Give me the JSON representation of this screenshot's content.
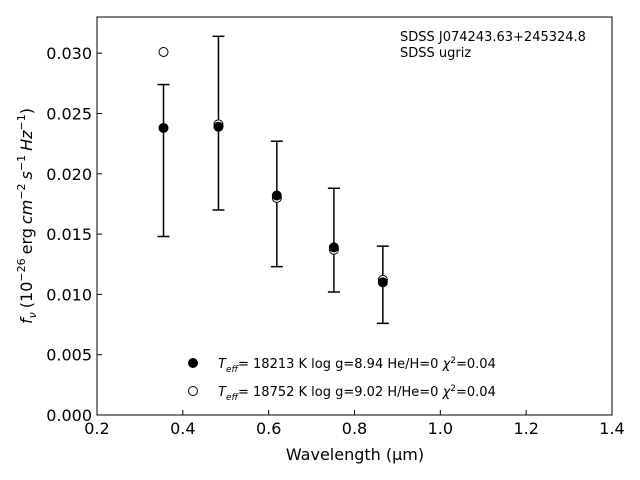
{
  "chart_data": {
    "type": "scatter",
    "xlabel": "Wavelength (μm)",
    "ylabel_parts": {
      "f": "f",
      "nu": "ν",
      "open": "(10",
      "exp1": "−26",
      "erg": "erg",
      "cm": "cm",
      "exp2": "−2",
      "s": "s",
      "exp3": "−1",
      "hz": "Hz",
      "exp4": "−1",
      "close": ")"
    },
    "xlim": [
      0.2,
      1.4
    ],
    "ylim": [
      0.0,
      0.033
    ],
    "xticks": [
      0.2,
      0.4,
      0.6,
      0.8,
      1.0,
      1.2,
      1.4
    ],
    "xtick_labels": [
      "0.2",
      "0.4",
      "0.6",
      "0.8",
      "1.0",
      "1.2",
      "1.4"
    ],
    "yticks": [
      0.0,
      0.005,
      0.01,
      0.015,
      0.02,
      0.025,
      0.03
    ],
    "ytick_labels": [
      "0.000",
      "0.005",
      "0.010",
      "0.015",
      "0.020",
      "0.025",
      "0.030"
    ],
    "annotation": [
      "SDSS J074243.63+245324.8",
      "SDSS ugriz"
    ],
    "observed": {
      "x": [
        0.355,
        0.483,
        0.619,
        0.752,
        0.866
      ],
      "y_low": [
        0.0148,
        0.017,
        0.0123,
        0.0102,
        0.0076
      ],
      "y_high": [
        0.0274,
        0.0314,
        0.0227,
        0.0188,
        0.014
      ]
    },
    "series": [
      {
        "marker": "filled",
        "label": {
          "T": "T",
          "sub": "eff",
          "rest": "= 18213 K  log g=8.94  He/H=0  ",
          "chi": "χ",
          "sup": "2",
          "end": "=0.04"
        },
        "x": [
          0.355,
          0.483,
          0.619,
          0.752,
          0.866
        ],
        "y": [
          0.0238,
          0.0239,
          0.0182,
          0.0139,
          0.011
        ]
      },
      {
        "marker": "open",
        "label": {
          "T": "T",
          "sub": "eff",
          "rest": "= 18752 K  log g=9.02  H/He=0  ",
          "chi": "χ",
          "sup": "2",
          "end": "=0.04"
        },
        "x": [
          0.355,
          0.483,
          0.619,
          0.752,
          0.866
        ],
        "y": [
          0.0301,
          0.0241,
          0.018,
          0.0137,
          0.0112
        ]
      }
    ],
    "legend_position": "lower-center",
    "grid": false,
    "colors": {
      "marker": "#000000",
      "background": "#ffffff"
    }
  }
}
